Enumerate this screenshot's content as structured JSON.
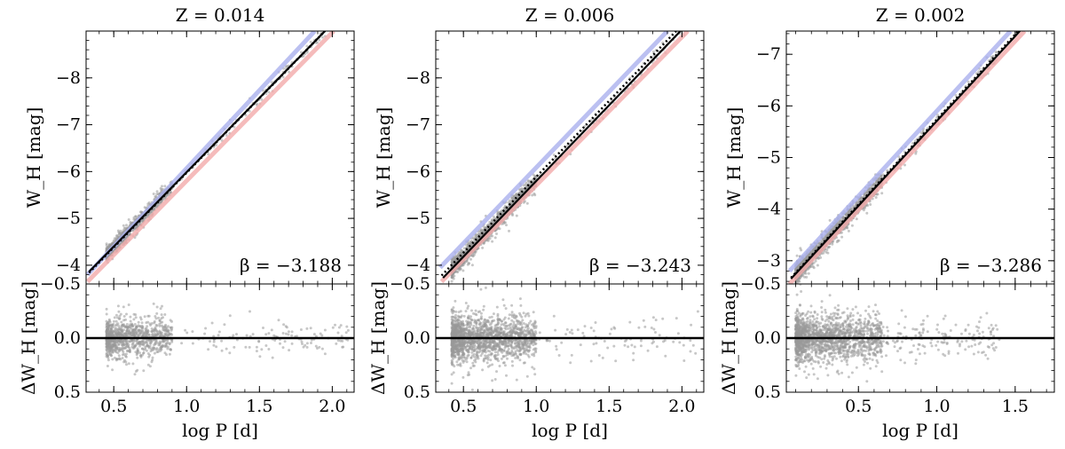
{
  "figure": {
    "shared_xlabel": "log P [d]",
    "top_ylabel": "W_H [mag]",
    "bottom_ylabel": "ΔW_H [mag]"
  },
  "colors": {
    "scatter": "#999999",
    "fit": "#000000",
    "blue_ref": "#aab0ee",
    "red_ref": "#f2aaaa"
  },
  "chart_data": [
    {
      "type": "scatter",
      "title": "Z = 0.014",
      "xlabel": "log P [d]",
      "ylabel_top": "W_H [mag]",
      "ylabel_bottom": "ΔW_H [mag]",
      "xlim": [
        0.31,
        2.15
      ],
      "ylim_top": [
        -3.6,
        -9.0
      ],
      "ylim_bottom": [
        0.5,
        -0.5
      ],
      "xticks": [
        0.5,
        1.0,
        1.5,
        2.0
      ],
      "xtick_labels": [
        "0.5",
        "1.0",
        "1.5",
        "2.0"
      ],
      "yticks_top": [
        -4,
        -5,
        -6,
        -7,
        -8
      ],
      "ytick_labels_top": [
        "−4",
        "−5",
        "−6",
        "−7",
        "−8"
      ],
      "yticks_bottom": [
        -0.5,
        0.0,
        0.5
      ],
      "ytick_labels_bottom": [
        "−0.5",
        "0.0",
        "0.5"
      ],
      "beta_label": "β = −3.188",
      "slope": -3.188,
      "fit_line": {
        "x": [
          0.33,
          1.95
        ],
        "y": [
          -3.86,
          -9.0
        ]
      },
      "dotted_line": {
        "x": [
          0.33,
          1.95
        ],
        "y": [
          -3.84,
          -9.0
        ]
      },
      "blue_line": {
        "x": [
          0.32,
          1.88
        ],
        "y": [
          -3.8,
          -9.0
        ]
      },
      "red_line": {
        "x": [
          0.32,
          2.01
        ],
        "y": [
          -3.65,
          -9.0
        ]
      },
      "cluster": {
        "x_range": [
          0.34,
          0.95
        ],
        "dense_range": [
          0.45,
          0.9
        ],
        "tail_range": [
          0.95,
          2.12
        ],
        "n_dense": 900,
        "n_tail": 120,
        "scatter_sd": 0.07
      }
    },
    {
      "type": "scatter",
      "title": "Z = 0.006",
      "xlabel": "log P [d]",
      "ylabel_top": "W_H [mag]",
      "ylabel_bottom": "ΔW_H [mag]",
      "xlim": [
        0.31,
        2.15
      ],
      "ylim_top": [
        -3.6,
        -9.0
      ],
      "ylim_bottom": [
        0.5,
        -0.5
      ],
      "xticks": [
        0.5,
        1.0,
        1.5,
        2.0
      ],
      "xtick_labels": [
        "0.5",
        "1.0",
        "1.5",
        "2.0"
      ],
      "yticks_top": [
        -4,
        -5,
        -6,
        -7,
        -8
      ],
      "ytick_labels_top": [
        "−4",
        "−5",
        "−6",
        "−7",
        "−8"
      ],
      "yticks_bottom": [
        -0.5,
        0.0,
        0.5
      ],
      "ytick_labels_bottom": [
        "−0.5",
        "0.0",
        "0.5"
      ],
      "beta_label": "β = −3.243",
      "slope": -3.243,
      "fit_line": {
        "x": [
          0.36,
          1.99
        ],
        "y": [
          -3.73,
          -9.0
        ]
      },
      "dotted_line": {
        "x": [
          0.35,
          1.96
        ],
        "y": [
          -3.78,
          -9.0
        ]
      },
      "blue_line": {
        "x": [
          0.34,
          1.9
        ],
        "y": [
          -3.95,
          -9.0
        ]
      },
      "red_line": {
        "x": [
          0.35,
          2.04
        ],
        "y": [
          -3.65,
          -9.0
        ]
      },
      "cluster": {
        "x_range": [
          0.4,
          1.0
        ],
        "dense_range": [
          0.42,
          1.0
        ],
        "tail_range": [
          1.0,
          2.12
        ],
        "n_dense": 1600,
        "n_tail": 90,
        "scatter_sd": 0.09
      }
    },
    {
      "type": "scatter",
      "title": "Z = 0.002",
      "xlabel": "log P [d]",
      "ylabel_top": "W_H [mag]",
      "ylabel_bottom": "ΔW_H [mag]",
      "xlim": [
        0.04,
        1.75
      ],
      "ylim_top": [
        -2.55,
        -7.45
      ],
      "ylim_bottom": [
        0.5,
        -0.5
      ],
      "xticks": [
        0.5,
        1.0,
        1.5
      ],
      "xtick_labels": [
        "0.5",
        "1.0",
        "1.5"
      ],
      "yticks_top": [
        -3,
        -4,
        -5,
        -6,
        -7
      ],
      "ytick_labels_top": [
        "−3",
        "−4",
        "−5",
        "−6",
        "−7"
      ],
      "yticks_bottom": [
        -0.5,
        0.0,
        0.5
      ],
      "ytick_labels_bottom": [
        "−0.5",
        "0.0",
        "0.5"
      ],
      "beta_label": "β = −3.286",
      "slope": -3.286,
      "fit_line": {
        "x": [
          0.07,
          1.53
        ],
        "y": [
          -2.65,
          -7.45
        ]
      },
      "dotted_line": {
        "x": [
          0.07,
          1.52
        ],
        "y": [
          -2.67,
          -7.45
        ]
      },
      "blue_line": {
        "x": [
          0.06,
          1.47
        ],
        "y": [
          -2.8,
          -7.45
        ]
      },
      "red_line": {
        "x": [
          0.06,
          1.56
        ],
        "y": [
          -2.55,
          -7.45
        ]
      },
      "cluster": {
        "x_range": [
          0.1,
          0.65
        ],
        "dense_range": [
          0.1,
          0.65
        ],
        "tail_range": [
          0.65,
          1.4
        ],
        "n_dense": 1500,
        "n_tail": 160,
        "scatter_sd": 0.09
      }
    }
  ]
}
